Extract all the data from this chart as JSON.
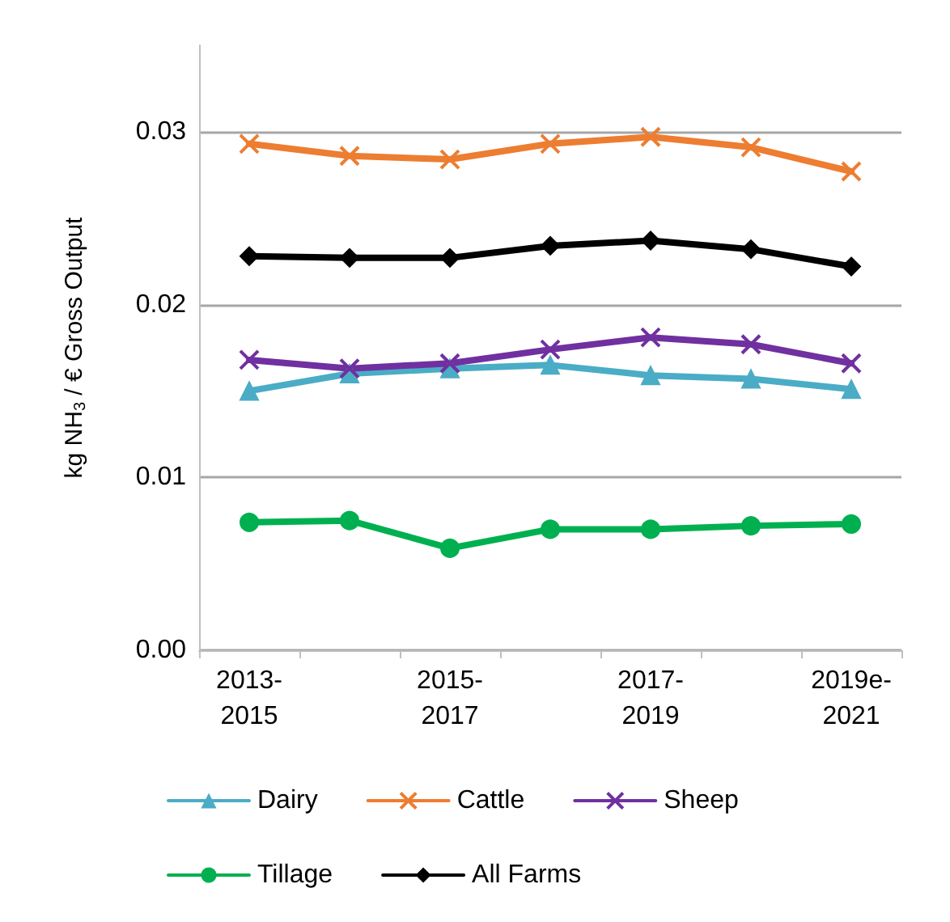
{
  "chart_data": {
    "type": "line",
    "ylabel": "kg NH$_{3}$ / € Gross Output",
    "categories": [
      "2013-\n2015",
      null,
      "2015-\n2017",
      null,
      "2017-\n2019",
      null,
      "2019e-\n2021"
    ],
    "series": [
      {
        "name": "Dairy",
        "color": "#4bacc6",
        "marker": "triangle",
        "values": [
          0.015,
          0.016,
          0.0163,
          0.0165,
          0.0159,
          0.0157,
          0.0151
        ]
      },
      {
        "name": "Cattle",
        "color": "#ed7d31",
        "marker": "cross",
        "values": [
          0.0293,
          0.0286,
          0.0284,
          0.0293,
          0.0297,
          0.0291,
          0.0277
        ]
      },
      {
        "name": "Sheep",
        "color": "#7030a0",
        "marker": "cross",
        "values": [
          0.0168,
          0.0163,
          0.0166,
          0.0174,
          0.0181,
          0.0177,
          0.0166
        ]
      },
      {
        "name": "Tillage",
        "color": "#00b050",
        "marker": "circle",
        "values": [
          0.0074,
          0.0075,
          0.0059,
          0.007,
          0.007,
          0.0072,
          0.0073
        ]
      },
      {
        "name": "All Farms",
        "color": "#000000",
        "marker": "diamond",
        "values": [
          0.0228,
          0.0227,
          0.0227,
          0.0234,
          0.0237,
          0.0232,
          0.0222
        ]
      }
    ],
    "ylim": [
      0,
      0.035
    ],
    "yticks": [
      {
        "value": 0,
        "label": "0.00"
      },
      {
        "value": 0.01,
        "label": "0.01"
      },
      {
        "value": 0.02,
        "label": "0.02"
      },
      {
        "value": 0.03,
        "label": "0.03"
      }
    ],
    "grid": "y",
    "legend": "bottom",
    "line_style": "solid"
  }
}
